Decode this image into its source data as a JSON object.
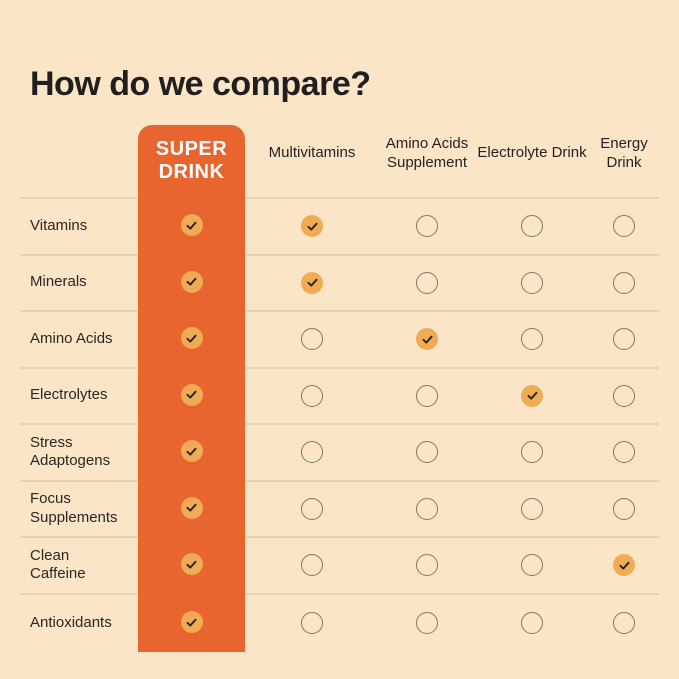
{
  "title": "How do we compare?",
  "colors": {
    "background": "#FAE5C7",
    "accent_orange": "#E8652F",
    "check_circle_fill": "#F1AB54",
    "check_mark": "#26231E",
    "empty_circle_border": "#83775D",
    "divider": "#E5D3B3",
    "title_text": "#201E1E",
    "badge_text": "#FFFFFF"
  },
  "table": {
    "brand_column": {
      "label_line1": "SUPER",
      "label_line2": "DRINK"
    },
    "columns": [
      "Multivitamins",
      "Amino Acids Supplement",
      "Electrolyte Drink",
      "Energy Drink"
    ],
    "rows": [
      {
        "label": "Vitamins",
        "super_drink": true,
        "values": [
          true,
          false,
          false,
          false
        ]
      },
      {
        "label": "Minerals",
        "super_drink": true,
        "values": [
          true,
          false,
          false,
          false
        ]
      },
      {
        "label": "Amino Acids",
        "super_drink": true,
        "values": [
          false,
          true,
          false,
          false
        ]
      },
      {
        "label": "Electrolytes",
        "super_drink": true,
        "values": [
          false,
          false,
          true,
          false
        ]
      },
      {
        "label": "Stress Adaptogens",
        "super_drink": true,
        "values": [
          false,
          false,
          false,
          false
        ]
      },
      {
        "label": "Focus Supplements",
        "super_drink": true,
        "values": [
          false,
          false,
          false,
          false
        ]
      },
      {
        "label": "Clean Caffeine",
        "super_drink": true,
        "values": [
          false,
          false,
          false,
          true
        ]
      },
      {
        "label": "Antioxidants",
        "super_drink": true,
        "values": [
          false,
          false,
          false,
          false
        ]
      }
    ]
  }
}
